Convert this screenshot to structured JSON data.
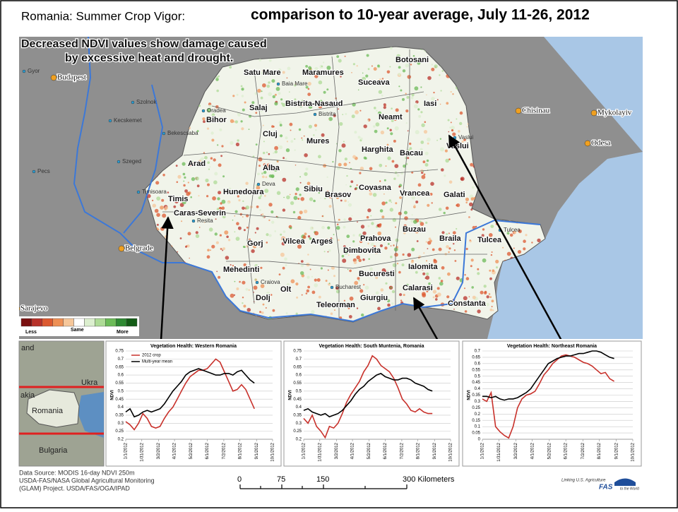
{
  "title": "Romania: Summer Crop Vigor:",
  "title_main": "comparison to 10-year average, July 11-26, 2012",
  "map": {
    "annotation": [
      "Decreased NDVI values show damage caused",
      "by excessive heat and drought."
    ],
    "legend": {
      "low": "Less",
      "mid": "Same",
      "high": "More",
      "colors": [
        "#7a1010",
        "#b8322a",
        "#dc5a30",
        "#ee9055",
        "#f6c79a",
        "#ffffff",
        "#dcefcf",
        "#aedb96",
        "#6cbb58",
        "#2f8a33",
        "#135c16"
      ]
    },
    "counties": [
      "Botosani",
      "Satu Mare",
      "Maramures",
      "Suceava",
      "Salaj",
      "Bistrita-Nasaud",
      "Iasi",
      "Bihor",
      "Neamt",
      "Cluj",
      "Mures",
      "Harghita",
      "Bacau",
      "Vaslui",
      "Arad",
      "Alba",
      "Sibiu",
      "Brasov",
      "Covasna",
      "Vrancea",
      "Galati",
      "Timis",
      "Hunedoara",
      "Caras-Severin",
      "Buzau",
      "Braila",
      "Tulcea",
      "Prahova",
      "Gorj",
      "Vilcea",
      "Arges",
      "Dimbovita",
      "Mehedinti",
      "Ialomita",
      "Bucuresti",
      "Olt",
      "Calarasi",
      "Giurgiu",
      "Teleorman",
      "Dolj",
      "Constanta"
    ],
    "cities": [
      "Budapest",
      "Belgrade",
      "Sarajevo",
      "Chisinau",
      "Mykolayiv",
      "Odesa",
      "Gyor",
      "Szolnok",
      "Kecskemet",
      "Szeged",
      "Bekescsaba",
      "Pecs",
      "Oradea",
      "Deva",
      "Resita",
      "Craiova",
      "Bucharest",
      "Tulcea",
      "Baia Mare",
      "Timisoara",
      "Vaslui",
      "Bistrita"
    ],
    "inset_labels": [
      "and",
      "Ukra",
      "akia",
      "Romania",
      "Bulgaria"
    ],
    "scale_labels": [
      "0",
      "75",
      "150",
      "300 Kilometers"
    ]
  },
  "source": [
    "Data Source: MODIS 16-day NDVI 250m",
    "USDA-FAS/NASA Global Agricultural Monitoring",
    "(GLAM) Project. USDA/FAS/OGA/IPAD"
  ],
  "logo": [
    "Linking U.S. Agriculture",
    "FAS",
    "to the World"
  ],
  "chart_data": [
    {
      "type": "line",
      "title": "Vegetation Health: Western Romania",
      "ylabel": "NDVI",
      "x": [
        1,
        9,
        17,
        25,
        33,
        41,
        49,
        57,
        65,
        73,
        81,
        89,
        97,
        105,
        113,
        121,
        129,
        137,
        145,
        153,
        161,
        169,
        177,
        185,
        193,
        201,
        209,
        217,
        225,
        233,
        241
      ],
      "xlim": [
        1,
        275
      ],
      "xticks": [
        {
          "value": 1,
          "label": "1/1/2012"
        },
        {
          "value": 31,
          "label": "1/31/2012"
        },
        {
          "value": 62,
          "label": "3/2/2012"
        },
        {
          "value": 92,
          "label": "4/1/2012"
        },
        {
          "value": 123,
          "label": "5/2/2012"
        },
        {
          "value": 153,
          "label": "6/1/2012"
        },
        {
          "value": 184,
          "label": "7/2/2012"
        },
        {
          "value": 214,
          "label": "8/1/2012"
        },
        {
          "value": 245,
          "label": "9/1/2012"
        },
        {
          "value": 275,
          "label": "10/1/2012"
        }
      ],
      "ylim": [
        0.2,
        0.75
      ],
      "yticks": [
        0.2,
        0.25,
        0.3,
        0.35,
        0.4,
        0.45,
        0.5,
        0.55,
        0.6,
        0.65,
        0.7,
        0.75
      ],
      "grid": true,
      "series": [
        {
          "name": "2012 crop",
          "color": "#c8312b",
          "values": [
            0.31,
            0.29,
            0.26,
            0.3,
            0.36,
            0.33,
            0.28,
            0.27,
            0.28,
            0.33,
            0.37,
            0.4,
            0.45,
            0.5,
            0.55,
            0.59,
            0.61,
            0.63,
            0.63,
            0.64,
            0.67,
            0.7,
            0.68,
            0.62,
            0.56,
            0.5,
            0.51,
            0.54,
            0.51,
            0.45,
            0.39
          ]
        },
        {
          "name": "Multi-year mean",
          "color": "#000000",
          "values": [
            0.37,
            0.39,
            0.34,
            0.35,
            0.37,
            0.38,
            0.37,
            0.38,
            0.39,
            0.42,
            0.46,
            0.5,
            0.53,
            0.56,
            0.6,
            0.62,
            0.63,
            0.64,
            0.63,
            0.62,
            0.61,
            0.6,
            0.6,
            0.61,
            0.61,
            0.6,
            0.62,
            0.63,
            0.6,
            0.57,
            0.55
          ]
        }
      ]
    },
    {
      "type": "line",
      "title": "Vegetation Health: South Muntenia, Romania",
      "ylabel": "NDVI",
      "x": [
        1,
        9,
        17,
        25,
        33,
        41,
        49,
        57,
        65,
        73,
        81,
        89,
        97,
        105,
        113,
        121,
        129,
        137,
        145,
        153,
        161,
        169,
        177,
        185,
        193,
        201,
        209,
        217,
        225,
        233,
        241
      ],
      "xlim": [
        1,
        275
      ],
      "xticks": [
        {
          "value": 1,
          "label": "1/1/2012"
        },
        {
          "value": 31,
          "label": "1/31/2012"
        },
        {
          "value": 62,
          "label": "3/2/2012"
        },
        {
          "value": 92,
          "label": "4/1/2012"
        },
        {
          "value": 123,
          "label": "5/2/2012"
        },
        {
          "value": 153,
          "label": "6/1/2012"
        },
        {
          "value": 184,
          "label": "7/2/2012"
        },
        {
          "value": 214,
          "label": "8/1/2012"
        },
        {
          "value": 245,
          "label": "9/1/2012"
        },
        {
          "value": 275,
          "label": "10/1/2012"
        }
      ],
      "ylim": [
        0.2,
        0.75
      ],
      "yticks": [
        0.2,
        0.25,
        0.3,
        0.35,
        0.4,
        0.45,
        0.5,
        0.55,
        0.6,
        0.65,
        0.7,
        0.75
      ],
      "grid": true,
      "series": [
        {
          "color": "#c8312b",
          "values": [
            0.33,
            0.3,
            0.35,
            0.28,
            0.25,
            0.21,
            0.28,
            0.27,
            0.3,
            0.36,
            0.43,
            0.48,
            0.52,
            0.56,
            0.62,
            0.66,
            0.72,
            0.7,
            0.66,
            0.64,
            0.62,
            0.58,
            0.52,
            0.45,
            0.42,
            0.38,
            0.37,
            0.39,
            0.37,
            0.36,
            0.36
          ]
        },
        {
          "color": "#000000",
          "values": [
            0.38,
            0.39,
            0.37,
            0.36,
            0.35,
            0.36,
            0.34,
            0.35,
            0.36,
            0.38,
            0.41,
            0.44,
            0.48,
            0.51,
            0.53,
            0.56,
            0.58,
            0.6,
            0.61,
            0.59,
            0.58,
            0.57,
            0.57,
            0.58,
            0.58,
            0.57,
            0.55,
            0.54,
            0.53,
            0.51,
            0.5
          ]
        }
      ]
    },
    {
      "type": "line",
      "title": "Vegetation Health: Northeast Romania",
      "ylabel": "NDVI",
      "x": [
        1,
        9,
        17,
        25,
        33,
        41,
        49,
        57,
        65,
        73,
        81,
        89,
        97,
        105,
        113,
        121,
        129,
        137,
        145,
        153,
        161,
        169,
        177,
        185,
        193,
        201,
        209,
        217,
        225,
        233,
        241
      ],
      "xlim": [
        1,
        275
      ],
      "xticks": [
        {
          "value": 1,
          "label": "1/1/2012"
        },
        {
          "value": 31,
          "label": "1/31/2012"
        },
        {
          "value": 62,
          "label": "3/2/2012"
        },
        {
          "value": 92,
          "label": "4/1/2012"
        },
        {
          "value": 123,
          "label": "5/2/2012"
        },
        {
          "value": 153,
          "label": "6/1/2012"
        },
        {
          "value": 184,
          "label": "7/2/2012"
        },
        {
          "value": 214,
          "label": "8/1/2012"
        },
        {
          "value": 245,
          "label": "9/1/2012"
        },
        {
          "value": 275,
          "label": "10/1/2012"
        }
      ],
      "ylim": [
        0,
        0.7
      ],
      "yticks": [
        0,
        0.05,
        0.1,
        0.15,
        0.2,
        0.25,
        0.3,
        0.35,
        0.4,
        0.45,
        0.5,
        0.55,
        0.6,
        0.65,
        0.7
      ],
      "grid": true,
      "series": [
        {
          "color": "#c8312b",
          "values": [
            0.32,
            0.3,
            0.37,
            0.1,
            0.06,
            0.03,
            0.01,
            0.1,
            0.25,
            0.32,
            0.35,
            0.36,
            0.38,
            0.44,
            0.51,
            0.55,
            0.6,
            0.63,
            0.66,
            0.67,
            0.66,
            0.65,
            0.63,
            0.61,
            0.6,
            0.58,
            0.55,
            0.52,
            0.53,
            0.48,
            0.46
          ]
        },
        {
          "color": "#000000",
          "values": [
            0.34,
            0.34,
            0.33,
            0.34,
            0.32,
            0.31,
            0.32,
            0.32,
            0.33,
            0.35,
            0.37,
            0.4,
            0.45,
            0.5,
            0.55,
            0.6,
            0.62,
            0.64,
            0.65,
            0.66,
            0.66,
            0.67,
            0.68,
            0.68,
            0.69,
            0.7,
            0.7,
            0.69,
            0.67,
            0.65,
            0.64
          ]
        }
      ]
    }
  ]
}
